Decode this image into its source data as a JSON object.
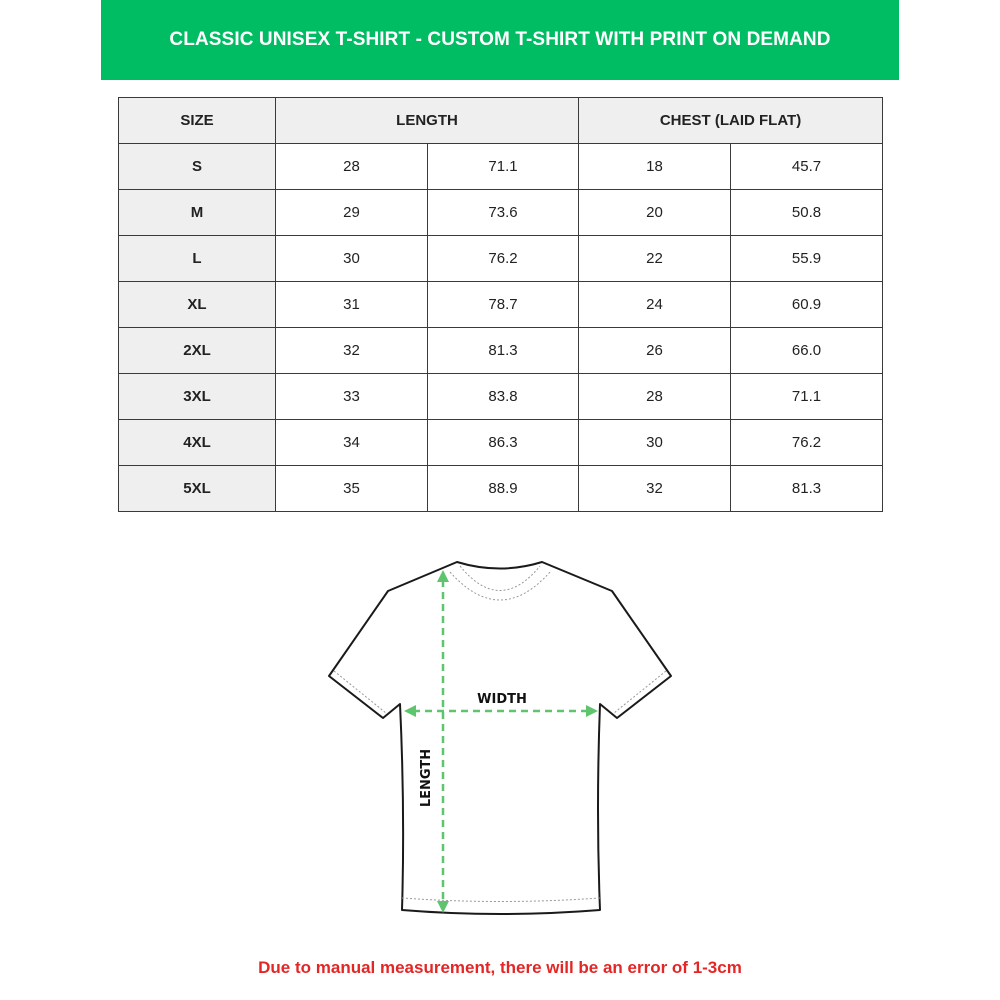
{
  "title": "CLASSIC UNISEX T-SHIRT - CUSTOM T-SHIRT WITH PRINT ON DEMAND",
  "colors": {
    "banner": "#00bd63",
    "arrows": "#5ec46e",
    "note": "#e32626"
  },
  "table": {
    "headers": [
      "SIZE",
      "LENGTH",
      "CHEST (LAID FLAT)"
    ],
    "rows": [
      {
        "size": "S",
        "length_in": "28",
        "length_cm": "71.1",
        "chest_in": "18",
        "chest_cm": "45.7"
      },
      {
        "size": "M",
        "length_in": "29",
        "length_cm": "73.6",
        "chest_in": "20",
        "chest_cm": "50.8"
      },
      {
        "size": "L",
        "length_in": "30",
        "length_cm": "76.2",
        "chest_in": "22",
        "chest_cm": "55.9"
      },
      {
        "size": "XL",
        "length_in": "31",
        "length_cm": "78.7",
        "chest_in": "24",
        "chest_cm": "60.9"
      },
      {
        "size": "2XL",
        "length_in": "32",
        "length_cm": "81.3",
        "chest_in": "26",
        "chest_cm": "66.0"
      },
      {
        "size": "3XL",
        "length_in": "33",
        "length_cm": "83.8",
        "chest_in": "28",
        "chest_cm": "71.1"
      },
      {
        "size": "4XL",
        "length_in": "34",
        "length_cm": "86.3",
        "chest_in": "30",
        "chest_cm": "76.2"
      },
      {
        "size": "5XL",
        "length_in": "35",
        "length_cm": "88.9",
        "chest_in": "32",
        "chest_cm": "81.3"
      }
    ]
  },
  "diagram": {
    "width_label": "WIDTH",
    "length_label": "LENGTH"
  },
  "note": "Due to manual measurement, there will be an error of 1-3cm"
}
